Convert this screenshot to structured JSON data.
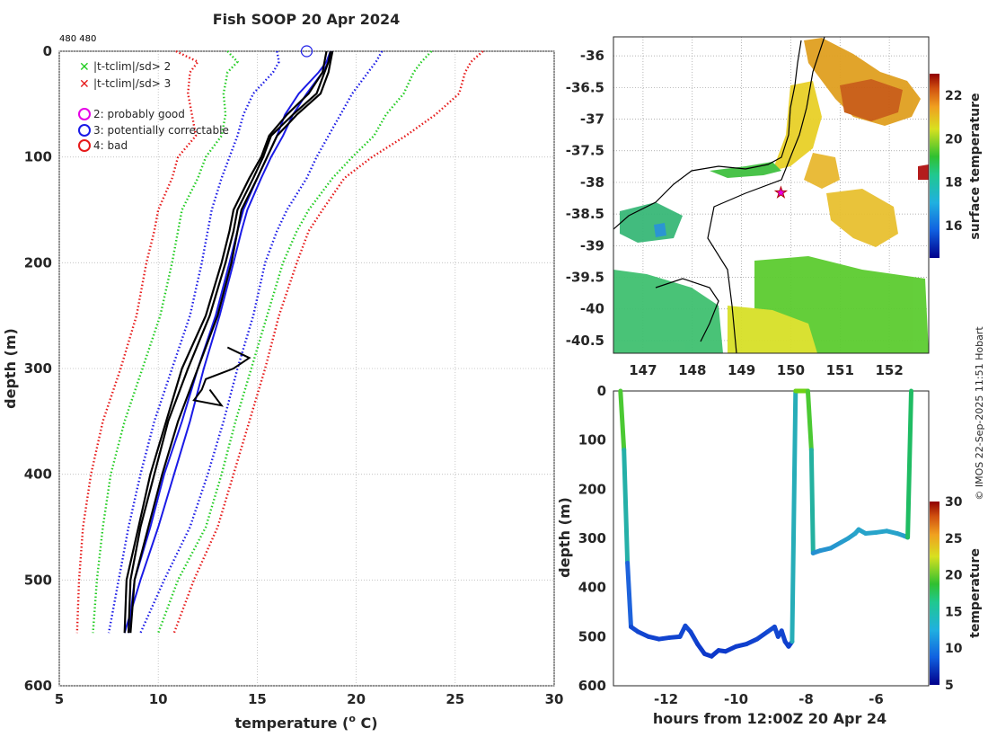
{
  "title": "Fish SOOP 20 Apr 2024",
  "id_label": "480 480",
  "copyright": "© IMOS 22-Sep-2025 11:51 Hobart",
  "colors": {
    "clim_blue": "#1a1ae6",
    "sd2": "#22cc22",
    "sd3": "#e61a1a",
    "profile": "#000000",
    "magenta": "#e600e6"
  },
  "chart_data": [
    {
      "type": "line",
      "name": "profile",
      "xlabel": "temperature (",
      "xlabel_sup": "o",
      "xlabel_tail": " C)",
      "ylabel": "depth (m)",
      "xlim": [
        5,
        30
      ],
      "ylim": [
        0,
        600
      ],
      "xticks": [
        "5",
        "10",
        "15",
        "20",
        "25",
        "30"
      ],
      "yticks": [
        "0",
        "100",
        "200",
        "300",
        "400",
        "500",
        "600"
      ],
      "legend": {
        "crosses": [
          {
            "label": "|t-tclim|/sd> 2",
            "color": "#22cc22"
          },
          {
            "label": "|t-tclim|/sd> 3",
            "color": "#e61a1a"
          }
        ],
        "circles": [
          {
            "label": "2: probably good",
            "color": "#e600e6"
          },
          {
            "label": "3: potentially correctable",
            "color": "#1a1ae6"
          },
          {
            "label": "4: bad",
            "color": "#e61a1a"
          }
        ]
      },
      "depth_levels": [
        0,
        10,
        20,
        40,
        60,
        80,
        100,
        120,
        150,
        170,
        200,
        250,
        300,
        350,
        400,
        450,
        500,
        550
      ],
      "series": [
        {
          "name": "clim_mean_a",
          "style": "solid",
          "color": "#1a1ae6",
          "temps": [
            18.8,
            18.6,
            18.3,
            17.5,
            16.8,
            16.3,
            15.7,
            15.2,
            14.5,
            14.2,
            13.8,
            13.1,
            12.3,
            11.6,
            10.8,
            10.0,
            9.1,
            8.3
          ]
        },
        {
          "name": "clim_mean_b",
          "style": "solid",
          "color": "#1a1ae6",
          "temps": [
            18.7,
            18.5,
            18.1,
            17.1,
            16.4,
            16.0,
            15.5,
            15.0,
            14.3,
            14.0,
            13.6,
            12.9,
            12.0,
            11.2,
            10.3,
            9.6,
            8.8,
            8.5
          ]
        },
        {
          "name": "sd1_lo",
          "style": "dotted",
          "color": "#1a1ae6",
          "temps": [
            16.0,
            16.1,
            15.8,
            14.8,
            14.3,
            14.0,
            13.6,
            13.2,
            12.7,
            12.5,
            12.2,
            11.6,
            10.7,
            9.8,
            9.1,
            8.5,
            8.0,
            7.5
          ]
        },
        {
          "name": "sd1_hi",
          "style": "dotted",
          "color": "#1a1ae6",
          "temps": [
            21.3,
            21.0,
            20.6,
            19.8,
            19.2,
            18.6,
            18.0,
            17.5,
            16.5,
            16.0,
            15.4,
            14.8,
            14.0,
            13.3,
            12.5,
            11.6,
            10.3,
            9.1
          ]
        },
        {
          "name": "sd2_lo",
          "style": "dotted",
          "color": "#22cc22",
          "temps": [
            13.5,
            14.0,
            13.5,
            13.3,
            13.4,
            13.2,
            12.4,
            12.0,
            11.2,
            11.0,
            10.7,
            10.1,
            9.2,
            8.3,
            7.6,
            7.2,
            6.9,
            6.7
          ]
        },
        {
          "name": "sd2_hi",
          "style": "dotted",
          "color": "#22cc22",
          "temps": [
            23.8,
            23.3,
            22.9,
            22.4,
            21.5,
            20.9,
            19.8,
            18.8,
            17.6,
            17.0,
            16.3,
            15.5,
            14.7,
            13.9,
            13.2,
            12.4,
            11.0,
            10.0
          ]
        },
        {
          "name": "sd3_lo",
          "style": "dotted",
          "color": "#e61a1a",
          "temps": [
            10.9,
            12.0,
            11.6,
            11.5,
            11.7,
            11.9,
            11.0,
            10.7,
            10.0,
            9.8,
            9.4,
            8.9,
            8.1,
            7.2,
            6.6,
            6.2,
            6.0,
            5.9
          ]
        },
        {
          "name": "sd3_hi",
          "style": "dotted",
          "color": "#e61a1a",
          "temps": [
            26.4,
            25.8,
            25.5,
            25.2,
            24.0,
            22.5,
            20.8,
            19.4,
            18.3,
            17.6,
            17.0,
            16.1,
            15.4,
            14.6,
            13.8,
            13.0,
            11.8,
            10.8
          ]
        },
        {
          "name": "profile_1",
          "style": "solid",
          "color": "#000000",
          "temps": [
            18.8,
            18.7,
            18.6,
            18.2,
            17.0,
            16.0,
            15.5,
            15.0,
            14.2,
            14.0,
            13.7,
            13.0,
            12.0,
            11.0,
            10.2,
            9.5,
            8.8,
            8.6
          ]
        },
        {
          "name": "profile_2",
          "style": "solid",
          "color": "#000000",
          "temps": [
            18.7,
            18.6,
            18.4,
            18.0,
            16.8,
            15.7,
            15.3,
            14.8,
            14.0,
            13.8,
            13.4,
            12.6,
            11.5,
            10.5,
            9.8,
            9.1,
            8.6,
            8.5
          ]
        },
        {
          "name": "profile_3",
          "style": "solid",
          "color": "#000000",
          "temps": [
            18.5,
            18.4,
            18.3,
            17.6,
            16.5,
            15.6,
            15.2,
            14.6,
            13.8,
            13.6,
            13.2,
            12.4,
            11.2,
            10.4,
            9.6,
            9.0,
            8.4,
            8.3
          ]
        }
      ],
      "excursion_depth": [
        280,
        290,
        300,
        310,
        320,
        330,
        335,
        330,
        320
      ],
      "excursion_temp": [
        13.5,
        14.6,
        13.8,
        12.4,
        12.2,
        11.8,
        13.2,
        13.0,
        12.6
      ],
      "marker": {
        "temp": 17.5,
        "depth": 0
      }
    },
    {
      "type": "heatmap",
      "name": "surface_temperature_map",
      "xlim": [
        146.4,
        152.8
      ],
      "ylim": [
        -40.7,
        -35.7
      ],
      "xticks": [
        "147",
        "148",
        "149",
        "150",
        "151",
        "152"
      ],
      "yticks": [
        "-36",
        "-36.5",
        "-37",
        "-37.5",
        "-38",
        "-38.5",
        "-39",
        "-39.5",
        "-40",
        "-40.5"
      ],
      "colorbar_label": "surface temperature",
      "colorbar_range": [
        14.5,
        23
      ],
      "colorbar_ticks": [
        "16",
        "18",
        "20",
        "22"
      ],
      "ship_position": {
        "lon": 149.8,
        "lat": -38.15
      }
    },
    {
      "type": "line",
      "name": "depth_vs_time",
      "xlabel": "hours from 12:00Z 20 Apr 24",
      "ylabel": "depth (m)",
      "xlim": [
        -13.5,
        -4.5
      ],
      "ylim": [
        0,
        600
      ],
      "xticks": [
        "-12",
        "-10",
        "-8",
        "-6"
      ],
      "yticks": [
        "0",
        "100",
        "200",
        "300",
        "400",
        "500",
        "600"
      ],
      "colorbar_label": "temperature",
      "colorbar_range": [
        5,
        30
      ],
      "colorbar_ticks": [
        "5",
        "10",
        "15",
        "20",
        "25",
        "30"
      ],
      "hours": [
        -13.3,
        -13.2,
        -13.1,
        -13.0,
        -12.8,
        -12.5,
        -12.2,
        -11.9,
        -11.6,
        -11.45,
        -11.3,
        -11.1,
        -10.9,
        -10.7,
        -10.5,
        -10.3,
        -10.0,
        -9.7,
        -9.4,
        -9.1,
        -8.9,
        -8.8,
        -8.7,
        -8.6,
        -8.5,
        -8.4,
        -8.3,
        -8.15,
        -8.05,
        -7.95,
        -7.85,
        -7.8,
        -7.6,
        -7.3,
        -7.0,
        -6.8,
        -6.6,
        -6.5,
        -6.3,
        -6.0,
        -5.7,
        -5.4,
        -5.2,
        -5.1,
        -5.0
      ],
      "depths": [
        0,
        120,
        350,
        480,
        490,
        500,
        505,
        502,
        500,
        478,
        490,
        515,
        535,
        540,
        528,
        530,
        520,
        515,
        505,
        490,
        480,
        500,
        488,
        510,
        520,
        510,
        0,
        0,
        0,
        0,
        120,
        330,
        325,
        320,
        308,
        300,
        290,
        282,
        290,
        288,
        285,
        290,
        295,
        298,
        0
      ]
    }
  ]
}
